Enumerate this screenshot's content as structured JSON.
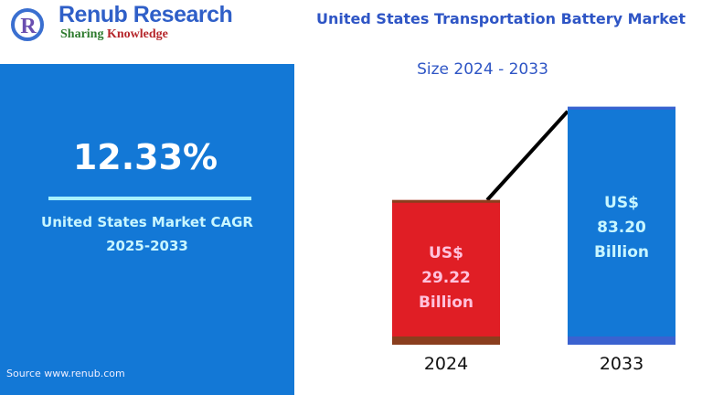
{
  "brand": {
    "name": "Renub Research",
    "tagline_a": "Sharing ",
    "tagline_b": "Knowledge"
  },
  "title": "United States Transportation Battery Market",
  "subtitle": "Size 2024 - 2033",
  "panel": {
    "cagr_value": "12.33%",
    "cagr_label": "United States Market CAGR",
    "cagr_period": "2025-2033",
    "source": "Source  www.renub.com"
  },
  "colors": {
    "panel": "#1378d6",
    "bar_2024": "#e01e25",
    "bar_2024_border": "#8a3e1e",
    "bar_2033": "#1378d6",
    "bar_2033_border": "#3a62d0"
  },
  "chart_data": {
    "type": "bar",
    "title": "United States Transportation Battery Market",
    "categories": [
      "2024",
      "2033"
    ],
    "values": [
      29.22,
      83.2
    ],
    "unit": "US$ Billion",
    "data_labels": [
      [
        "US$",
        "29.22",
        "Billion"
      ],
      [
        "US$",
        "83.20",
        "Billion"
      ]
    ],
    "connector_line": true
  }
}
